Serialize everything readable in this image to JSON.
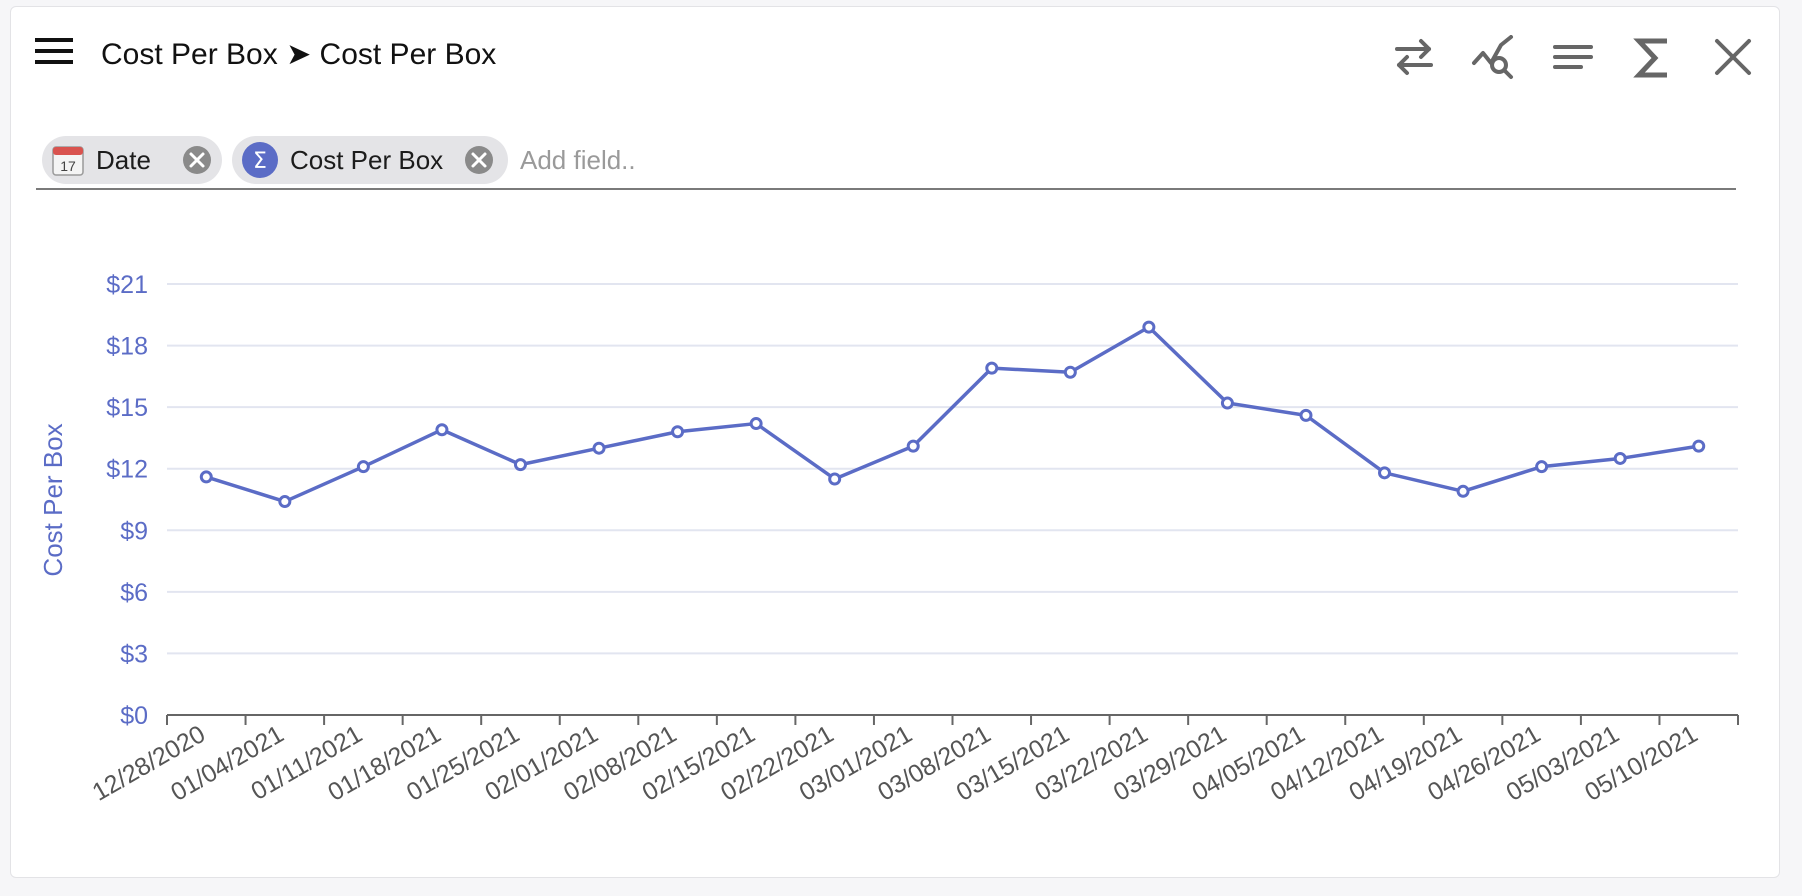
{
  "header": {
    "title": "Cost Per Box ➤ Cost Per Box",
    "icons": [
      "menu-icon",
      "swap-arrows-icon",
      "chart-search-icon",
      "text-lines-icon",
      "sigma-icon",
      "close-icon"
    ]
  },
  "filters": {
    "chips": [
      {
        "label": "Date",
        "icon": "calendar-icon",
        "calendar_day": "17"
      },
      {
        "label": "Cost Per Box",
        "icon": "sigma-icon",
        "sigma_glyph": "Σ"
      }
    ],
    "add_field_placeholder": "Add field.."
  },
  "colors": {
    "series": "#5b6cc6",
    "axis_text": "#5b6cc6",
    "gridline": "#e2e5f0",
    "chip_sigma_bg": "#5b6cc6"
  },
  "chart_data": {
    "type": "line",
    "ylabel": "Cost Per Box",
    "ylim": [
      0,
      21
    ],
    "yticks": [
      0,
      3,
      6,
      9,
      12,
      15,
      18,
      21
    ],
    "ytick_labels": [
      "$0",
      "$3",
      "$6",
      "$9",
      "$12",
      "$15",
      "$18",
      "$21"
    ],
    "grid": true,
    "x": [
      "12/28/2020",
      "01/04/2021",
      "01/11/2021",
      "01/18/2021",
      "01/25/2021",
      "02/01/2021",
      "02/08/2021",
      "02/15/2021",
      "02/22/2021",
      "03/01/2021",
      "03/08/2021",
      "03/15/2021",
      "03/22/2021",
      "03/29/2021",
      "04/05/2021",
      "04/12/2021",
      "04/19/2021",
      "04/26/2021",
      "05/03/2021",
      "05/10/2021"
    ],
    "series": [
      {
        "values": [
          11.6,
          10.4,
          12.1,
          13.9,
          12.2,
          13.0,
          13.8,
          14.2,
          11.5,
          13.1,
          16.9,
          16.7,
          18.9,
          15.2,
          14.6,
          11.8,
          10.9,
          12.1,
          12.5,
          13.1
        ]
      }
    ]
  }
}
